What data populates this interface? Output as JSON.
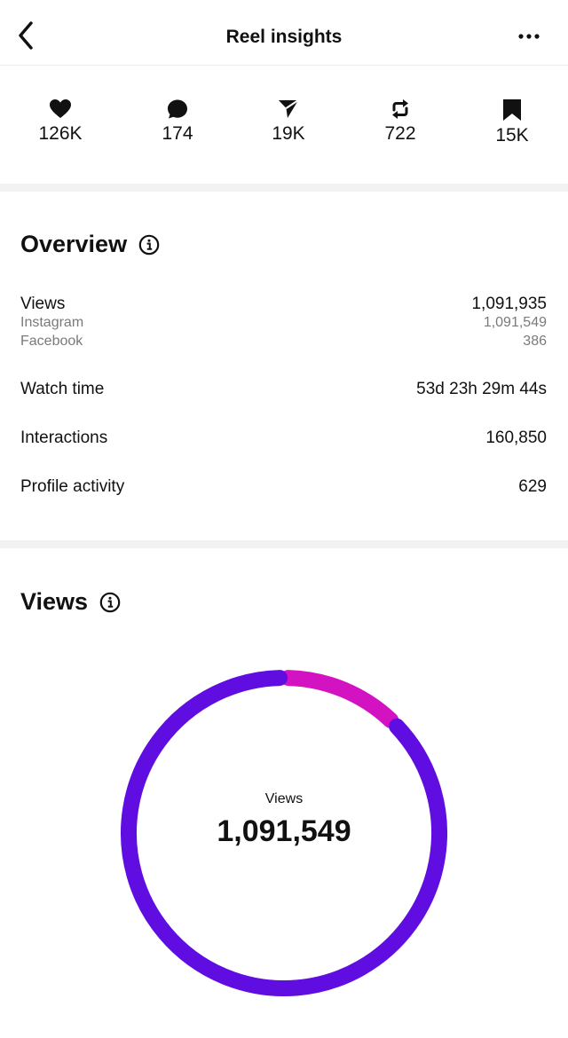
{
  "header": {
    "title": "Reel insights",
    "back_icon": "chevron-left-icon",
    "more_icon": "more-horizontal-icon"
  },
  "stats": [
    {
      "icon": "heart-icon",
      "value": "126K"
    },
    {
      "icon": "comment-icon",
      "value": "174"
    },
    {
      "icon": "share-icon",
      "value": "19K"
    },
    {
      "icon": "repost-icon",
      "value": "722"
    },
    {
      "icon": "bookmark-icon",
      "value": "15K"
    }
  ],
  "overview": {
    "title": "Overview",
    "info_icon": "info-icon",
    "views": {
      "label": "Views",
      "value": "1,091,935"
    },
    "instagram": {
      "label": "Instagram",
      "value": "1,091,549"
    },
    "facebook": {
      "label": "Facebook",
      "value": "386"
    },
    "watch_time": {
      "label": "Watch time",
      "value": "53d 23h 29m 44s"
    },
    "interactions": {
      "label": "Interactions",
      "value": "160,850"
    },
    "profile_activity": {
      "label": "Profile activity",
      "value": "629"
    }
  },
  "views_section": {
    "title": "Views",
    "info_icon": "info-icon",
    "center_label": "Views",
    "center_value": "1,091,549"
  },
  "chart_data": {
    "type": "pie",
    "donut": true,
    "segments": [
      {
        "share": 0.125,
        "color": "#d312c2"
      },
      {
        "share": 0.875,
        "color": "#5f0de0"
      }
    ]
  }
}
